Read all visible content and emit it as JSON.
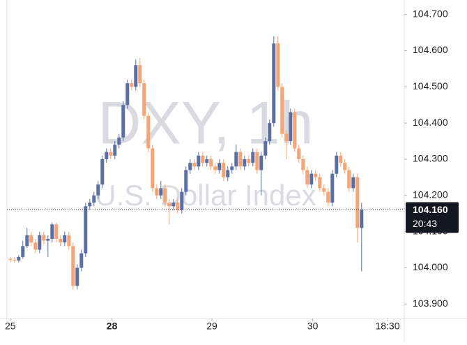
{
  "chart_data": {
    "type": "candlestick",
    "title": "DXY, 1h",
    "subtitle": "U.S. Dollar Index",
    "up_color": "#5d6f9f",
    "down_color": "#f0a679",
    "open": [
      104.025,
      104.022,
      104.02,
      104.03,
      104.06,
      104.09,
      104.07,
      104.05,
      104.09,
      104.075,
      104.08,
      104.12,
      104.08,
      104.07,
      104.09,
      104.06,
      103.95,
      104.0,
      104.04,
      104.17,
      104.18,
      104.2,
      104.23,
      104.3,
      104.32,
      104.31,
      104.34,
      104.36,
      104.45,
      104.51,
      104.5,
      104.56,
      104.51,
      104.42,
      104.33,
      104.22,
      104.2,
      104.22,
      104.18,
      104.17,
      104.18,
      104.16,
      104.21,
      104.27,
      104.29,
      104.28,
      104.31,
      104.29,
      104.3,
      104.28,
      104.27,
      104.29,
      104.25,
      104.27,
      104.28,
      104.32,
      104.28,
      104.3,
      104.29,
      104.32,
      104.27,
      104.31,
      104.35,
      104.4,
      104.62,
      104.5,
      104.37,
      104.35,
      104.43,
      104.33,
      104.3,
      104.27,
      104.23,
      104.26,
      104.25,
      104.22,
      104.21,
      104.18,
      104.26,
      104.31,
      104.29,
      104.27,
      104.22,
      104.25,
      104.11
    ],
    "high": [
      104.03,
      104.03,
      104.035,
      104.075,
      104.11,
      104.1,
      104.08,
      104.1,
      104.1,
      104.09,
      104.125,
      104.125,
      104.09,
      104.1,
      104.1,
      104.07,
      104.01,
      104.05,
      104.18,
      104.19,
      104.21,
      104.24,
      104.31,
      104.33,
      104.33,
      104.35,
      104.37,
      104.46,
      104.52,
      104.52,
      104.575,
      104.58,
      104.52,
      104.43,
      104.34,
      104.23,
      104.24,
      104.23,
      104.19,
      104.19,
      104.19,
      104.22,
      104.28,
      104.3,
      104.3,
      104.32,
      104.32,
      104.31,
      104.31,
      104.29,
      104.3,
      104.3,
      104.28,
      104.29,
      104.34,
      104.33,
      104.31,
      104.31,
      104.33,
      104.33,
      104.32,
      104.36,
      104.41,
      104.64,
      104.64,
      104.51,
      104.38,
      104.44,
      104.44,
      104.34,
      104.31,
      104.28,
      104.27,
      104.27,
      104.26,
      104.23,
      104.22,
      104.27,
      104.32,
      104.32,
      104.3,
      104.28,
      104.26,
      104.26,
      104.18
    ],
    "low": [
      104.015,
      104.015,
      104.015,
      104.025,
      104.055,
      104.06,
      104.04,
      104.04,
      104.065,
      104.03,
      104.07,
      104.07,
      104.06,
      104.06,
      104.05,
      103.94,
      103.94,
      103.99,
      104.03,
      104.16,
      104.17,
      104.19,
      104.22,
      104.29,
      104.3,
      104.3,
      104.33,
      104.35,
      104.44,
      104.49,
      104.49,
      104.5,
      104.41,
      104.32,
      104.21,
      104.19,
      104.19,
      104.17,
      104.12,
      104.16,
      104.15,
      104.15,
      104.2,
      104.26,
      104.27,
      104.27,
      104.28,
      104.28,
      104.27,
      104.26,
      104.26,
      104.24,
      104.24,
      104.26,
      104.27,
      104.27,
      104.27,
      104.28,
      104.28,
      104.26,
      104.2,
      104.3,
      104.34,
      104.39,
      104.49,
      104.36,
      104.3,
      104.34,
      104.32,
      104.29,
      104.26,
      104.22,
      104.22,
      104.24,
      104.21,
      104.2,
      104.17,
      104.17,
      104.25,
      104.28,
      104.26,
      104.21,
      104.21,
      104.07,
      103.99
    ],
    "close": [
      104.022,
      104.02,
      104.03,
      104.06,
      104.09,
      104.07,
      104.05,
      104.09,
      104.075,
      104.08,
      104.12,
      104.08,
      104.07,
      104.09,
      104.06,
      103.95,
      104.0,
      104.04,
      104.17,
      104.18,
      104.2,
      104.23,
      104.3,
      104.32,
      104.31,
      104.34,
      104.36,
      104.45,
      104.51,
      104.5,
      104.56,
      104.51,
      104.42,
      104.33,
      104.22,
      104.2,
      104.22,
      104.18,
      104.17,
      104.18,
      104.16,
      104.21,
      104.27,
      104.29,
      104.28,
      104.31,
      104.29,
      104.3,
      104.28,
      104.27,
      104.29,
      104.25,
      104.27,
      104.28,
      104.32,
      104.28,
      104.3,
      104.29,
      104.32,
      104.27,
      104.31,
      104.35,
      104.4,
      104.62,
      104.5,
      104.37,
      104.35,
      104.43,
      104.33,
      104.3,
      104.27,
      104.23,
      104.26,
      104.25,
      104.22,
      104.21,
      104.18,
      104.26,
      104.31,
      104.29,
      104.27,
      104.22,
      104.25,
      104.11,
      104.16
    ],
    "xlim": [
      -0.8,
      94.2
    ],
    "xticks": [
      {
        "value": 0,
        "label": "25"
      },
      {
        "value": 24.3,
        "label": "28"
      },
      {
        "value": 48.2,
        "label": "29"
      },
      {
        "value": 72.3,
        "label": "30"
      },
      {
        "value": 90.2,
        "label": "18:30"
      }
    ],
    "ylim": [
      103.86,
      104.74
    ],
    "yticks": [
      {
        "value": 103.9,
        "label": "103.900"
      },
      {
        "value": 104.0,
        "label": "104.000"
      },
      {
        "value": 104.1,
        "label": "104.100"
      },
      {
        "value": 104.2,
        "label": "104.200"
      },
      {
        "value": 104.3,
        "label": "104.300"
      },
      {
        "value": 104.4,
        "label": "104.400"
      },
      {
        "value": 104.5,
        "label": "104.500"
      },
      {
        "value": 104.6,
        "label": "104.600"
      },
      {
        "value": 104.7,
        "label": "104.700"
      }
    ],
    "last_price": {
      "value": 104.16,
      "label": "104.160",
      "countdown": "20:43"
    }
  }
}
